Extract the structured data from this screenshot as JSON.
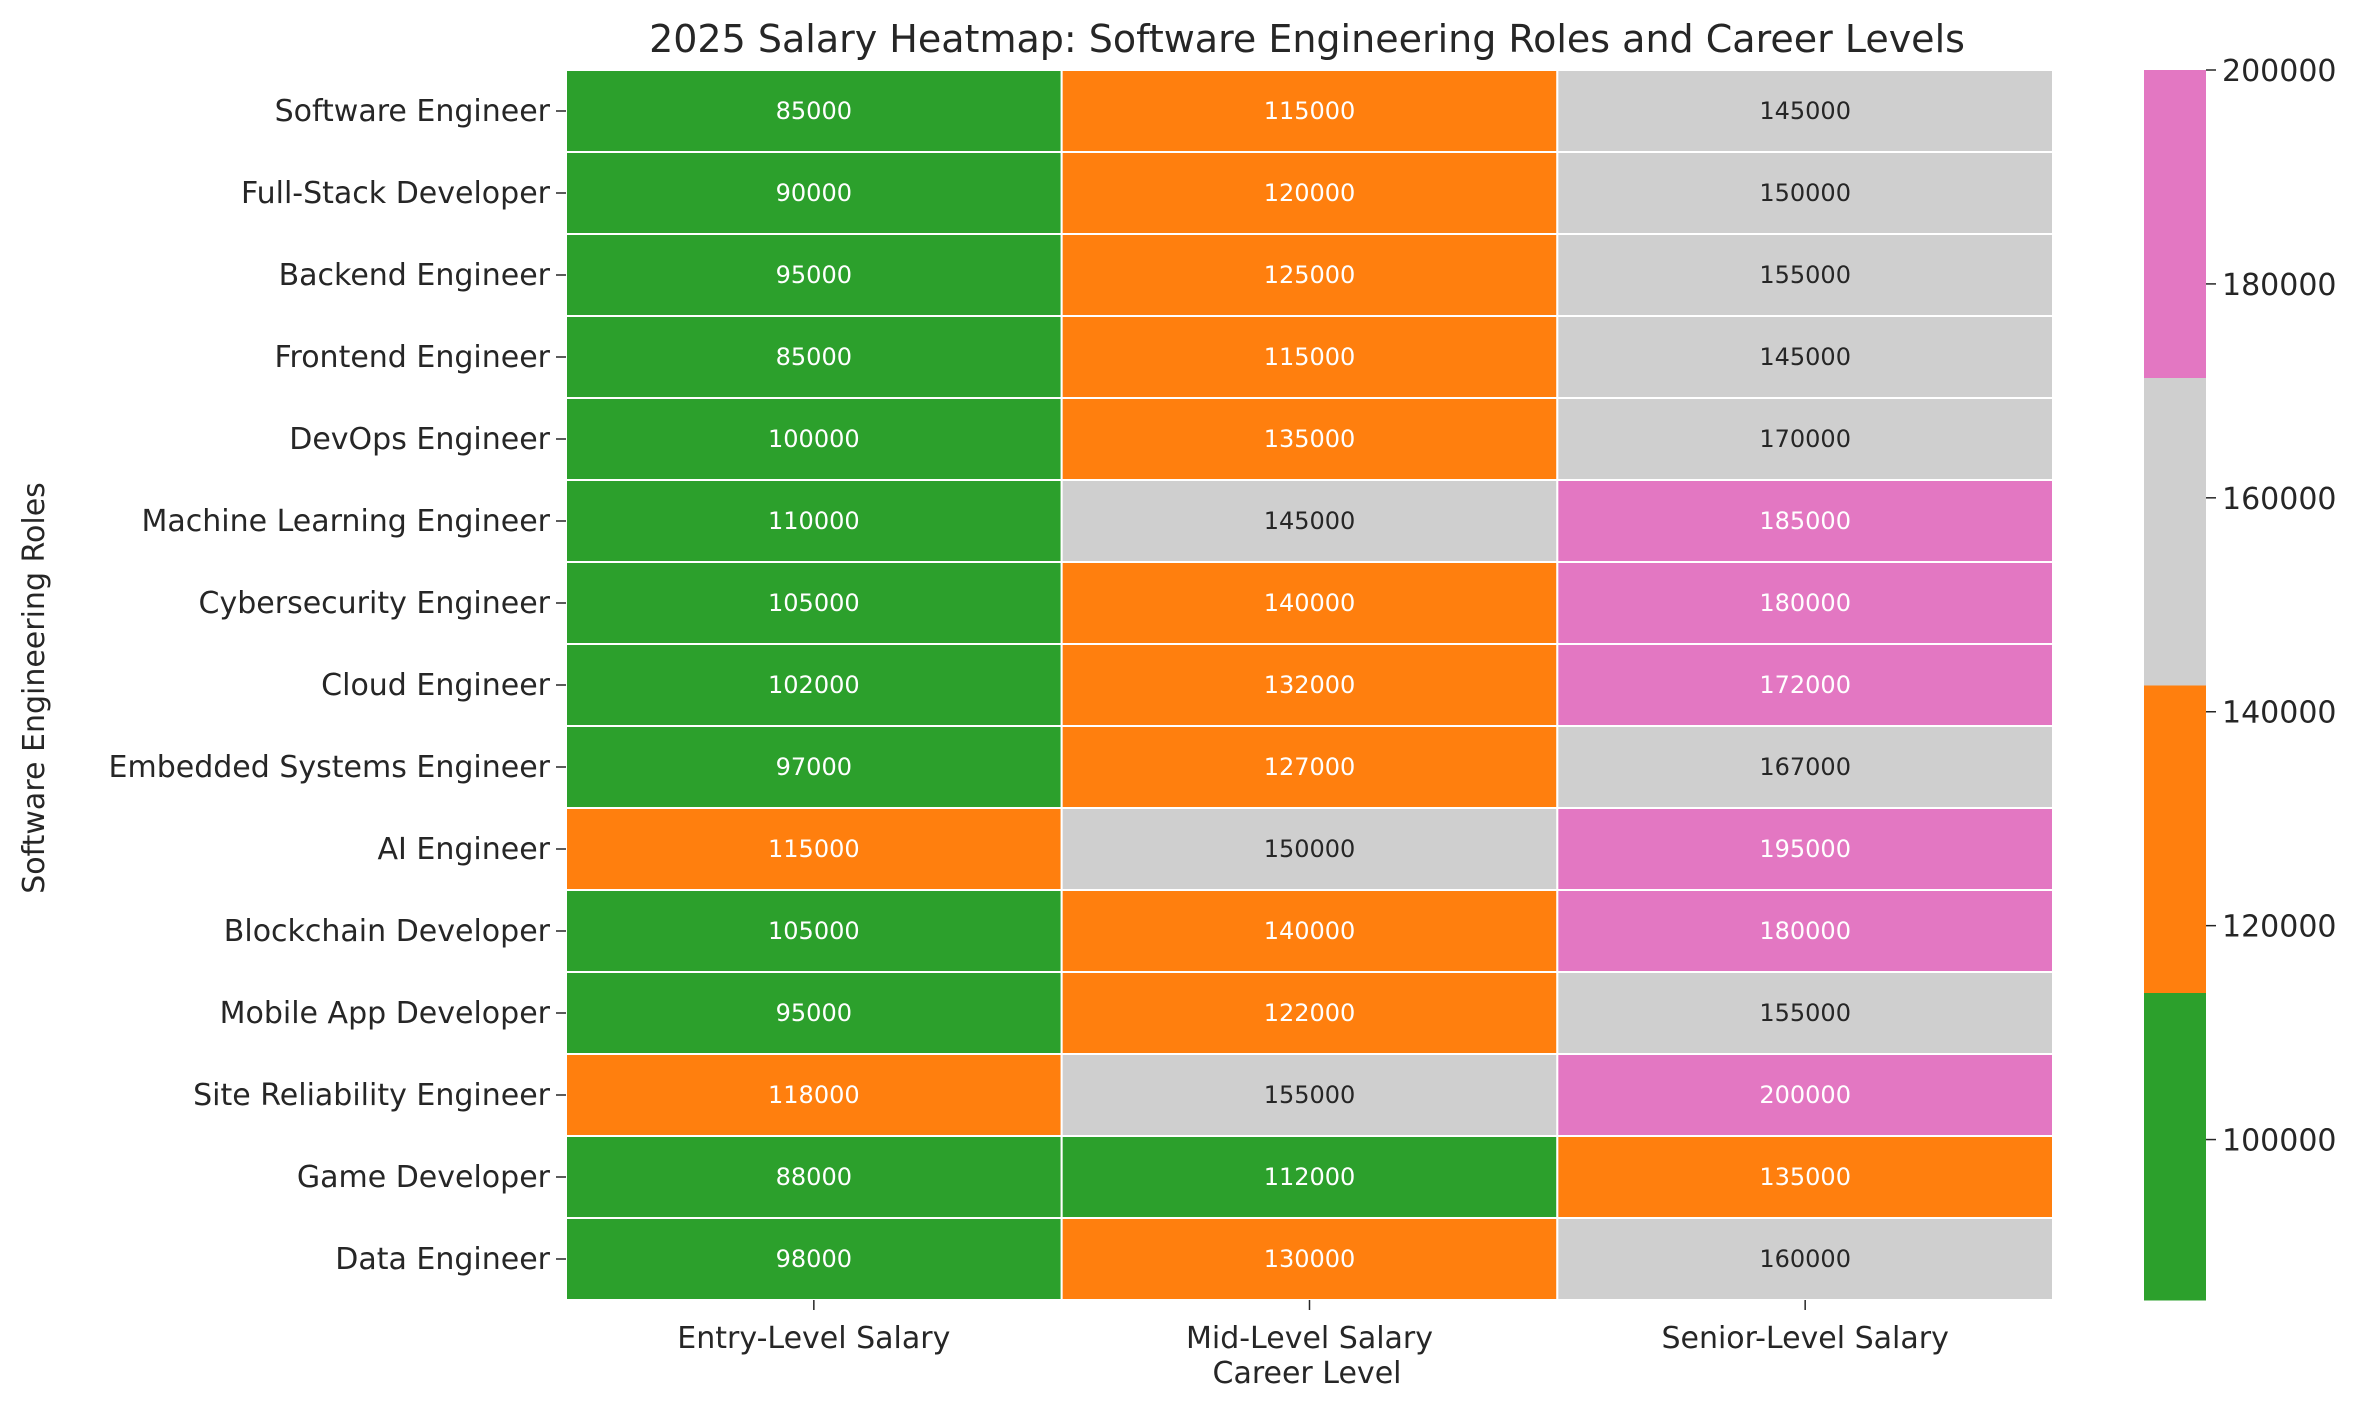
{
  "chart_data": {
    "type": "heatmap",
    "title": "2025 Salary Heatmap: Software Engineering Roles and Career Levels",
    "xlabel": "Career Level",
    "ylabel": "Software Engineering Roles",
    "columns": [
      "Entry-Level Salary",
      "Mid-Level Salary",
      "Senior-Level Salary"
    ],
    "rows": [
      "Software Engineer",
      "Full-Stack Developer",
      "Backend Engineer",
      "Frontend Engineer",
      "DevOps Engineer",
      "Machine Learning Engineer",
      "Cybersecurity Engineer",
      "Cloud Engineer",
      "Embedded Systems Engineer",
      "AI Engineer",
      "Blockchain Developer",
      "Mobile App Developer",
      "Site Reliability Engineer",
      "Game Developer",
      "Data Engineer"
    ],
    "values": [
      [
        85000,
        115000,
        145000
      ],
      [
        90000,
        120000,
        150000
      ],
      [
        95000,
        125000,
        155000
      ],
      [
        85000,
        115000,
        145000
      ],
      [
        100000,
        135000,
        170000
      ],
      [
        110000,
        145000,
        185000
      ],
      [
        105000,
        140000,
        180000
      ],
      [
        102000,
        132000,
        172000
      ],
      [
        97000,
        127000,
        167000
      ],
      [
        115000,
        150000,
        195000
      ],
      [
        105000,
        140000,
        180000
      ],
      [
        95000,
        122000,
        155000
      ],
      [
        118000,
        155000,
        200000
      ],
      [
        88000,
        112000,
        135000
      ],
      [
        98000,
        130000,
        160000
      ]
    ],
    "colorbar": {
      "min": 85000,
      "max": 200000,
      "ticks": [
        100000,
        120000,
        140000,
        160000,
        180000,
        200000
      ],
      "colors": [
        "#2ca02c",
        "#ff7f0e",
        "#cfcfcf",
        "#e377c2"
      ],
      "text_colors": [
        "#ffffff",
        "#ffffff",
        "#262626",
        "#ffffff"
      ]
    }
  }
}
